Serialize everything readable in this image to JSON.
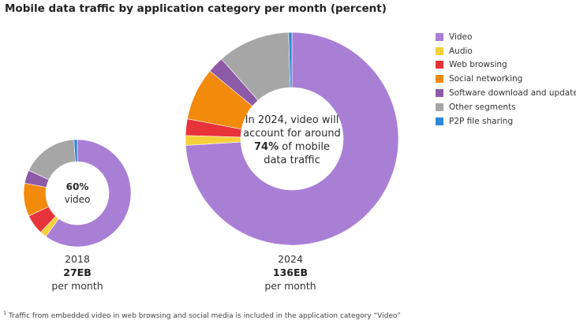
{
  "title": "Mobile data traffic by application category per month (percent)",
  "colors": {
    "Video": "#a97fd6",
    "Audio": "#f4d13a",
    "Web browsing": "#e8333a",
    "Social networking": "#f28a0c",
    "Software download and update": "#8c5aa6",
    "Other segments": "#a6a6a6",
    "P2P file sharing": "#2f87d8"
  },
  "legend": [
    {
      "label": "Video"
    },
    {
      "label": "Audio"
    },
    {
      "label": "Web browsing"
    },
    {
      "label": "Social networking"
    },
    {
      "label": "Software download and update"
    },
    {
      "label": "Other segments"
    },
    {
      "label": "P2P file sharing"
    }
  ],
  "charts": {
    "c2018": {
      "center_pct": "60%",
      "center_word": "video",
      "year": "2018",
      "volume": "27EB",
      "period": "per month"
    },
    "c2024": {
      "center_line1": "In 2024, video will",
      "center_line2": "account for around",
      "center_pct": "74%",
      "center_line3_rest": " of mobile",
      "center_line4": "data traffic",
      "year": "2024",
      "volume": "136EB",
      "period": "per month"
    }
  },
  "footnote_marker": "1",
  "footnote": " Traffic from embedded video in web browsing and social media is included in the application category “Video”",
  "chart_data": [
    {
      "type": "pie",
      "year": "2018",
      "categories": [
        "Video",
        "Audio",
        "Web browsing",
        "Social networking",
        "Software download and update",
        "Other segments",
        "P2P file sharing"
      ],
      "values": [
        60,
        2,
        6,
        10,
        4,
        17,
        1
      ],
      "unit": "percent"
    },
    {
      "type": "pie",
      "year": "2024",
      "categories": [
        "Video",
        "Audio",
        "Web browsing",
        "Social networking",
        "Software download and update",
        "Other segments",
        "P2P file sharing"
      ],
      "values": [
        74,
        1.5,
        2.5,
        8,
        2.5,
        11,
        0.5
      ],
      "unit": "percent"
    }
  ]
}
